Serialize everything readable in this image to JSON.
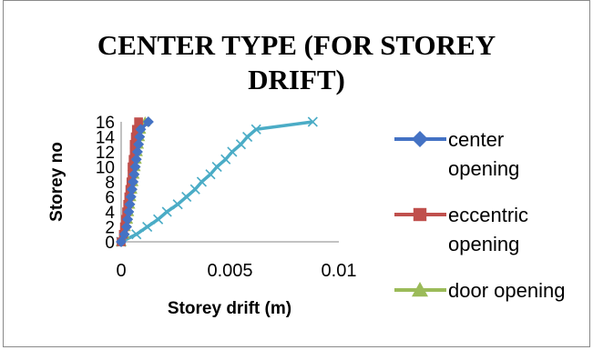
{
  "chart_data": {
    "type": "scatter",
    "title_lines": [
      "CENTER TYPE (FOR STOREY",
      "DRIFT)"
    ],
    "xlabel": "Storey drift (m)",
    "ylabel": "Storey no",
    "xlim": [
      0,
      0.01
    ],
    "ylim": [
      0,
      16
    ],
    "x_ticks": [
      "0",
      "0.005",
      "0.01"
    ],
    "y_ticks": [
      "0",
      "2",
      "4",
      "6",
      "8",
      "10",
      "12",
      "14",
      "16"
    ],
    "grid": false,
    "legend_position": "right",
    "y": [
      0,
      1,
      2,
      3,
      4,
      5,
      6,
      7,
      8,
      9,
      10,
      11,
      12,
      13,
      14,
      15,
      16
    ],
    "series": [
      {
        "name": "center opening",
        "color": "#4472C4",
        "marker": "diamond",
        "x": [
          0,
          0.00015,
          0.00025,
          0.0003,
          0.00035,
          0.0004,
          0.00045,
          0.0005,
          0.00055,
          0.0006,
          0.00065,
          0.0007,
          0.00075,
          0.0008,
          0.00085,
          0.0009,
          0.00125
        ]
      },
      {
        "name": "eccentric opening",
        "color": "#C0504D",
        "marker": "square",
        "x": [
          0,
          0.0001,
          0.00015,
          0.0002,
          0.00025,
          0.0003,
          0.00035,
          0.0004,
          0.00045,
          0.0005,
          0.0005,
          0.00055,
          0.0006,
          0.0006,
          0.00065,
          0.0007,
          0.0008
        ]
      },
      {
        "name": "door opening",
        "color": "#9BBB59",
        "marker": "triangle",
        "x": [
          0,
          0.00015,
          0.0002,
          0.0003,
          0.00035,
          0.0004,
          0.00045,
          0.0005,
          0.00055,
          0.0006,
          0.00065,
          0.0007,
          0.00075,
          0.0008,
          0.00085,
          0.0009,
          0.0011
        ]
      },
      {
        "color": "#8064A2",
        "marker": "none",
        "x": [
          0,
          0.0001,
          0.00015,
          0.0002,
          0.00025,
          0.0003,
          0.00035,
          0.0004,
          0.00045,
          0.0005,
          0.00055,
          0.0006,
          0.00065,
          0.0007,
          0.00075,
          0.0008,
          0.00085
        ]
      },
      {
        "color": "#4BACC6",
        "marker": "x",
        "x": [
          0,
          0.0007,
          0.0012,
          0.0017,
          0.0021,
          0.0026,
          0.003,
          0.0034,
          0.0037,
          0.0041,
          0.0044,
          0.0048,
          0.0051,
          0.0055,
          0.0058,
          0.0062,
          0.0088
        ]
      }
    ]
  }
}
